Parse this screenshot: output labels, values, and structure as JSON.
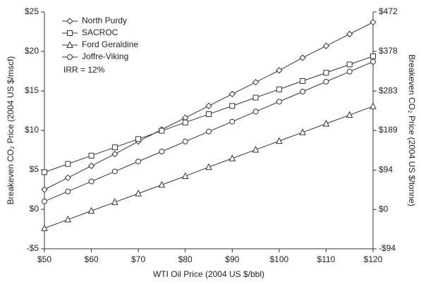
{
  "chart_data": {
    "type": "line",
    "xlabel": "WTI Oil Price (2004 US $/bbl)",
    "ylabel": "Breakeven CO₂ Price (2004 US $/mscf)",
    "y2label": "Breakeven CO₂ Price (2004 US $/tonne)",
    "annotation": "IRR = 12%",
    "x": [
      50,
      55,
      60,
      65,
      70,
      75,
      80,
      85,
      90,
      95,
      100,
      105,
      110,
      115,
      120
    ],
    "series": [
      {
        "name": "North Purdy",
        "color": "#333333",
        "marker": "diamond",
        "values": [
          2.5,
          4.0,
          5.5,
          7.0,
          8.6,
          10.1,
          11.6,
          13.1,
          14.6,
          16.1,
          17.6,
          19.2,
          20.7,
          22.2,
          23.7
        ]
      },
      {
        "name": "SACROC",
        "color": "#333333",
        "marker": "square",
        "values": [
          4.7,
          5.75,
          6.8,
          7.85,
          8.9,
          9.95,
          11.0,
          12.05,
          13.1,
          14.15,
          15.2,
          16.25,
          17.3,
          18.35,
          19.4
        ]
      },
      {
        "name": "Ford Geraldine",
        "color": "#333333",
        "marker": "triangle",
        "values": [
          -2.4,
          -1.3,
          -0.2,
          0.9,
          2.0,
          3.1,
          4.2,
          5.35,
          6.45,
          7.55,
          8.65,
          9.75,
          10.85,
          11.95,
          13.05
        ]
      },
      {
        "name": "Joffre-Viking",
        "color": "#333333",
        "marker": "circle",
        "values": [
          1.0,
          2.26,
          3.53,
          4.79,
          6.06,
          7.32,
          8.59,
          9.85,
          11.11,
          12.38,
          13.64,
          14.91,
          16.17,
          17.44,
          18.7
        ]
      }
    ],
    "xlim": [
      50,
      120
    ],
    "xticks": [
      {
        "value": 50,
        "label": "$50"
      },
      {
        "value": 60,
        "label": "$60"
      },
      {
        "value": 70,
        "label": "$70"
      },
      {
        "value": 80,
        "label": "$80"
      },
      {
        "value": 90,
        "label": "$90"
      },
      {
        "value": 100,
        "label": "$100"
      },
      {
        "value": 110,
        "label": "$110"
      },
      {
        "value": 120,
        "label": "$120"
      }
    ],
    "ylim": [
      -5,
      25
    ],
    "yticks": [
      {
        "value": -5,
        "label": "-$5"
      },
      {
        "value": 0,
        "label": "$0"
      },
      {
        "value": 5,
        "label": "$5"
      },
      {
        "value": 10,
        "label": "$10"
      },
      {
        "value": 15,
        "label": "$15"
      },
      {
        "value": 20,
        "label": "$20"
      },
      {
        "value": 25,
        "label": "$25"
      }
    ],
    "y2lim": [
      -94,
      472
    ],
    "y2ticks": [
      {
        "value": -94,
        "label": "-$94"
      },
      {
        "value": 0,
        "label": "$0"
      },
      {
        "value": 94,
        "label": "$94"
      },
      {
        "value": 189,
        "label": "$189"
      },
      {
        "value": 283,
        "label": "$283"
      },
      {
        "value": 378,
        "label": "$378"
      },
      {
        "value": 472,
        "label": "$472"
      }
    ],
    "legend": "upper left",
    "grid": false
  }
}
